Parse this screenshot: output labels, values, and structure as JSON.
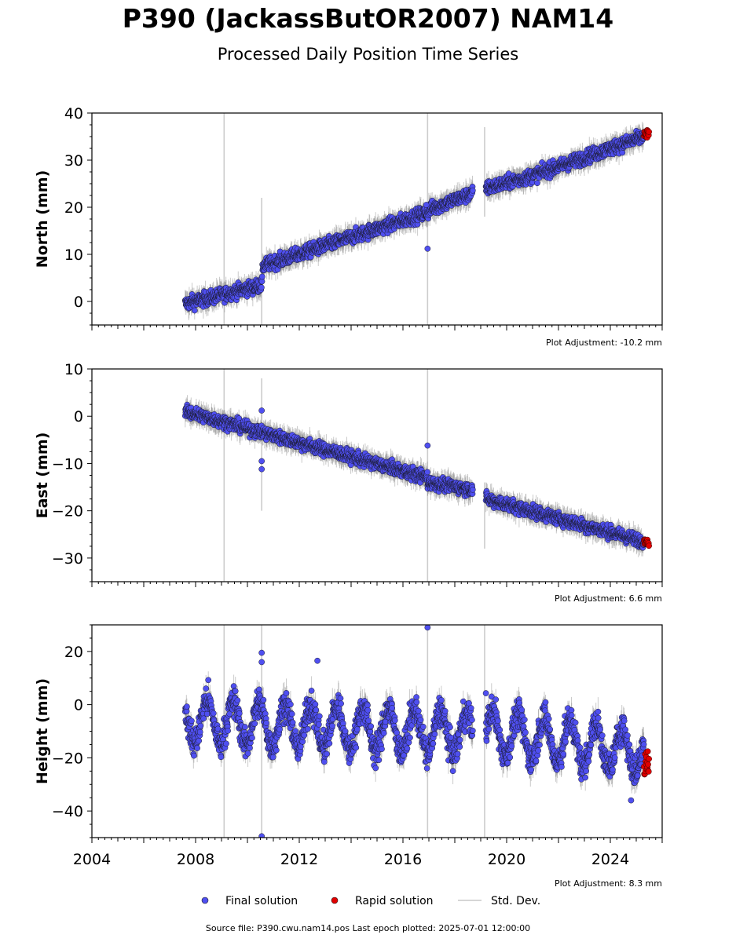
{
  "header": {
    "title": "P390 (JackassButOR2007) NAM14",
    "subtitle": "Processed Daily Position Time Series"
  },
  "footer": {
    "source_label": "Source file: P390.cwu.nam14.pos  Last epoch plotted: 2025-07-01 12:00:00"
  },
  "legend": {
    "final_label": "Final solution",
    "rapid_label": "Rapid solution",
    "std_label": "Std. Dev."
  },
  "colors": {
    "final": "#4f4ff0",
    "rapid": "#e00000",
    "std_dev": "#b5b5b5"
  },
  "chart_data": [
    {
      "type": "scatter",
      "ylabel": "North (mm)",
      "adjustment_label": "Plot Adjustment: -10.2 mm",
      "xlim": [
        2004,
        2026
      ],
      "ylim": [
        -5,
        40
      ],
      "yticks": [
        0,
        10,
        20,
        30,
        40
      ],
      "xticks": [
        2004,
        2008,
        2012,
        2016,
        2020,
        2024
      ],
      "segments": [
        {
          "start": 2007.6,
          "end": 2010.58,
          "y0": -0.5,
          "y1": 3.5,
          "noise": 1.3
        },
        {
          "start": 2010.58,
          "end": 2017.0,
          "y0": 7.5,
          "y1": 19.0,
          "noise": 1.3
        },
        {
          "start": 2017.0,
          "end": 2018.7,
          "y0": 19.5,
          "y1": 23.0,
          "noise": 1.3
        },
        {
          "start": 2019.2,
          "end": 2020.9,
          "y0": 24.0,
          "y1": 26.5,
          "noise": 1.3
        },
        {
          "start": 2020.9,
          "end": 2025.3,
          "y0": 26.5,
          "y1": 35.0,
          "noise": 1.3
        }
      ],
      "outliers": [
        [
          2016.95,
          11.2
        ],
        [
          2016.9,
          20.5
        ]
      ],
      "rapid": {
        "start": 2025.3,
        "end": 2025.5,
        "center": 35.6,
        "spread": 0.8
      },
      "vlines": [
        2009.1,
        2010.55,
        2016.95,
        2019.15
      ],
      "vline_limits": [
        [
          -5,
          40
        ],
        [
          -5,
          22
        ],
        [
          -5,
          40
        ],
        [
          18,
          37
        ]
      ]
    },
    {
      "type": "scatter",
      "ylabel": "East (mm)",
      "adjustment_label": "Plot Adjustment: 6.6 mm",
      "xlim": [
        2004,
        2026
      ],
      "ylim": [
        -35,
        10
      ],
      "yticks": [
        -30,
        -20,
        -10,
        0,
        10
      ],
      "xticks": [
        2004,
        2008,
        2012,
        2016,
        2020,
        2024
      ],
      "segments": [
        {
          "start": 2007.6,
          "end": 2016.95,
          "y0": 1.0,
          "y1": -13.0,
          "noise": 1.2
        },
        {
          "start": 2016.95,
          "end": 2018.7,
          "y0": -14.0,
          "y1": -15.5,
          "noise": 1.2
        },
        {
          "start": 2019.2,
          "end": 2025.3,
          "y0": -17.5,
          "y1": -26.5,
          "noise": 1.2
        }
      ],
      "outliers": [
        [
          2010.55,
          1.2
        ],
        [
          2010.55,
          -11.2
        ],
        [
          2010.55,
          -9.5
        ],
        [
          2016.95,
          -6.2
        ]
      ],
      "rapid": {
        "start": 2025.3,
        "end": 2025.5,
        "center": -26.7,
        "spread": 0.8
      },
      "vlines": [
        2009.1,
        2010.55,
        2016.95,
        2019.15
      ],
      "vline_limits": [
        [
          -35,
          10
        ],
        [
          -20,
          8
        ],
        [
          -35,
          10
        ],
        [
          -28,
          -14
        ]
      ]
    },
    {
      "type": "scatter",
      "ylabel": "Height (mm)",
      "adjustment_label": "Plot Adjustment: 8.3 mm",
      "xlim": [
        2004,
        2026
      ],
      "ylim": [
        -50,
        30
      ],
      "yticks": [
        -40,
        -20,
        0,
        20
      ],
      "xticks": [
        2004,
        2008,
        2012,
        2016,
        2020,
        2024
      ],
      "xticklabels": [
        "2004",
        "2008",
        "2012",
        "2016",
        "2020",
        "2024"
      ],
      "segments": [
        {
          "start": 2007.6,
          "end": 2018.7,
          "y0": -6.0,
          "y1": -11.0,
          "noise": 5.0,
          "seasonal": 8.0
        },
        {
          "start": 2019.2,
          "end": 2025.3,
          "y0": -10.0,
          "y1": -18.0,
          "noise": 5.0,
          "seasonal": 8.0
        }
      ],
      "outliers": [
        [
          2010.55,
          19.5
        ],
        [
          2010.55,
          16.0
        ],
        [
          2010.55,
          -49.5
        ],
        [
          2016.95,
          29.0
        ],
        [
          2012.7,
          16.5
        ],
        [
          2019.2,
          4.3
        ],
        [
          2024.8,
          -36.0
        ]
      ],
      "rapid": {
        "start": 2025.3,
        "end": 2025.5,
        "center": -22.0,
        "spread": 4.5
      },
      "vlines": [
        2009.1,
        2010.55,
        2016.95,
        2019.15
      ],
      "vline_limits": [
        [
          -50,
          30
        ],
        [
          -50,
          30
        ],
        [
          -50,
          30
        ],
        [
          -50,
          30
        ]
      ]
    }
  ]
}
